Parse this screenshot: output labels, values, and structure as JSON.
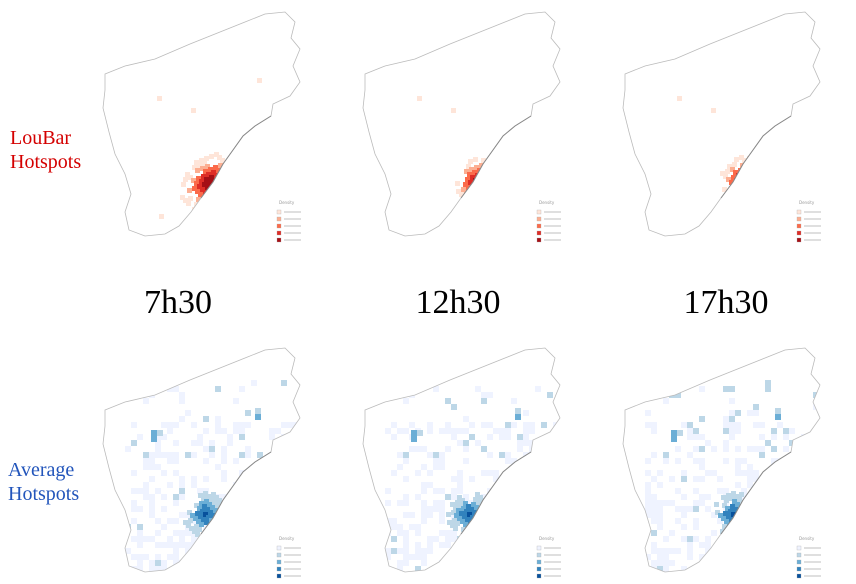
{
  "row_labels": {
    "loubar": [
      "LouBar",
      "Hotspots"
    ],
    "average": [
      "Average",
      "Hotspots"
    ]
  },
  "times": [
    "7h30",
    "12h30",
    "17h30"
  ],
  "legend_title": "Density",
  "colors": {
    "loubar_label": "#d40000",
    "average_label": "#2255bb",
    "red_scale": [
      "#fee5d9",
      "#fcae91",
      "#fb6a4a",
      "#de2d26",
      "#a50f15"
    ],
    "blue_scale": [
      "#eff3ff",
      "#bdd7e7",
      "#6baed6",
      "#3182bd",
      "#08519c"
    ],
    "outline": "#bbbbbb"
  }
}
